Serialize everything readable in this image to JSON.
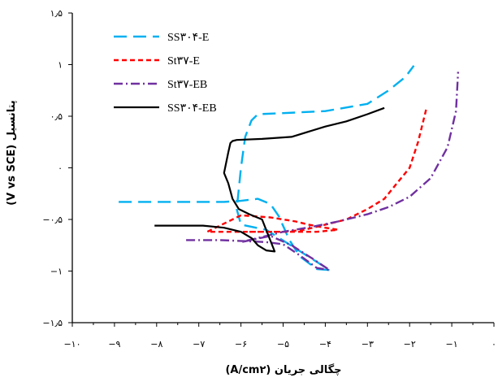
{
  "chart_data": {
    "type": "line",
    "xlabel": "چگالی جریان (A/cm۲)",
    "ylabel": "پتانسیل (V vs SCE)",
    "xlim": [
      -10,
      0
    ],
    "ylim": [
      -1.5,
      1.5
    ],
    "x_ticks": [
      {
        "value": -10,
        "label": "−۱۰"
      },
      {
        "value": -9,
        "label": "−۹"
      },
      {
        "value": -8,
        "label": "−۸"
      },
      {
        "value": -7,
        "label": "−۷"
      },
      {
        "value": -6,
        "label": "−۶"
      },
      {
        "value": -5,
        "label": "−۵"
      },
      {
        "value": -4,
        "label": "−۴"
      },
      {
        "value": -3,
        "label": "−۳"
      },
      {
        "value": -2,
        "label": "−۲"
      },
      {
        "value": -1,
        "label": "−۱"
      },
      {
        "value": 0,
        "label": "۰"
      }
    ],
    "y_ticks": [
      {
        "value": 1.5,
        "label": "۱٫۵"
      },
      {
        "value": 1,
        "label": "۱"
      },
      {
        "value": 0.5,
        "label": "۰٫۵"
      },
      {
        "value": 0,
        "label": "۰"
      },
      {
        "value": -0.5,
        "label": "−۰٫۵"
      },
      {
        "value": -1,
        "label": "−۱"
      },
      {
        "value": -1.5,
        "label": "−۱٫۵"
      }
    ],
    "legend": "top-left",
    "grid": false,
    "series": [
      {
        "name": "SS۳۰۴-E",
        "color": "#00B0F0",
        "dash": "long-dash",
        "x": [
          -8.9,
          -8.0,
          -7.2,
          -6.4,
          -6.0,
          -5.6,
          -5.3,
          -5.1,
          -4.85,
          -4.6,
          -4.2,
          -3.9,
          -5.4,
          -6.0,
          -6.1,
          -6.05,
          -6.0,
          -5.9,
          -5.75,
          -5.6,
          -5.0,
          -4.0,
          -3.0,
          -2.5,
          -2.1,
          -1.9
        ],
        "y": [
          -0.33,
          -0.33,
          -0.33,
          -0.33,
          -0.32,
          -0.3,
          -0.35,
          -0.47,
          -0.7,
          -0.86,
          -0.98,
          -0.99,
          -0.6,
          -0.55,
          -0.4,
          -0.2,
          0.0,
          0.3,
          0.46,
          0.52,
          0.53,
          0.55,
          0.62,
          0.75,
          0.88,
          0.99
        ]
      },
      {
        "name": "St۳۷-E",
        "color": "#FF0000",
        "dash": "short-dash",
        "x": [
          -5.8,
          -5.0,
          -4.2,
          -3.7,
          -4.0,
          -4.4,
          -4.7,
          -5.0,
          -5.3,
          -6.0,
          -6.8,
          -5.9,
          -5.0,
          -4.5,
          -4.0,
          -3.5,
          -3.0,
          -2.6,
          -2.3,
          -2.0,
          -1.8,
          -1.6
        ],
        "y": [
          -0.62,
          -0.62,
          -0.62,
          -0.6,
          -0.58,
          -0.55,
          -0.52,
          -0.5,
          -0.48,
          -0.46,
          -0.62,
          -0.62,
          -0.62,
          -0.6,
          -0.55,
          -0.5,
          -0.4,
          -0.3,
          -0.15,
          0.0,
          0.25,
          0.58
        ]
      },
      {
        "name": "St۳۷-EB",
        "color": "#7030A0",
        "dash": "dash-dot",
        "x": [
          -7.3,
          -6.5,
          -5.9,
          -5.4,
          -5.0,
          -4.6,
          -4.2,
          -3.9,
          -4.3,
          -4.8,
          -5.3,
          -6.0,
          -5.0,
          -4.3,
          -3.7,
          -3.0,
          -2.5,
          -2.0,
          -1.5,
          -1.1,
          -0.9,
          -0.85
        ],
        "y": [
          -0.7,
          -0.7,
          -0.71,
          -0.72,
          -0.74,
          -0.85,
          -0.97,
          -0.99,
          -0.88,
          -0.75,
          -0.66,
          -0.72,
          -0.62,
          -0.57,
          -0.52,
          -0.45,
          -0.38,
          -0.28,
          -0.1,
          0.2,
          0.55,
          0.93
        ]
      },
      {
        "name": "SS۳۰۴-EB",
        "color": "#000000",
        "dash": "solid",
        "x": [
          -8.05,
          -7.5,
          -6.9,
          -6.4,
          -6.0,
          -5.75,
          -5.6,
          -5.4,
          -5.2,
          -5.5,
          -5.8,
          -6.05,
          -6.2,
          -6.3,
          -6.4,
          -6.35,
          -6.3,
          -6.25,
          -6.2,
          -6.1,
          -5.5,
          -4.8,
          -4.0,
          -3.5,
          -3.0,
          -2.6
        ],
        "y": [
          -0.56,
          -0.56,
          -0.56,
          -0.58,
          -0.62,
          -0.68,
          -0.75,
          -0.8,
          -0.81,
          -0.5,
          -0.45,
          -0.4,
          -0.3,
          -0.15,
          -0.05,
          0.05,
          0.15,
          0.24,
          0.26,
          0.27,
          0.28,
          0.3,
          0.4,
          0.45,
          0.52,
          0.58
        ]
      }
    ]
  }
}
